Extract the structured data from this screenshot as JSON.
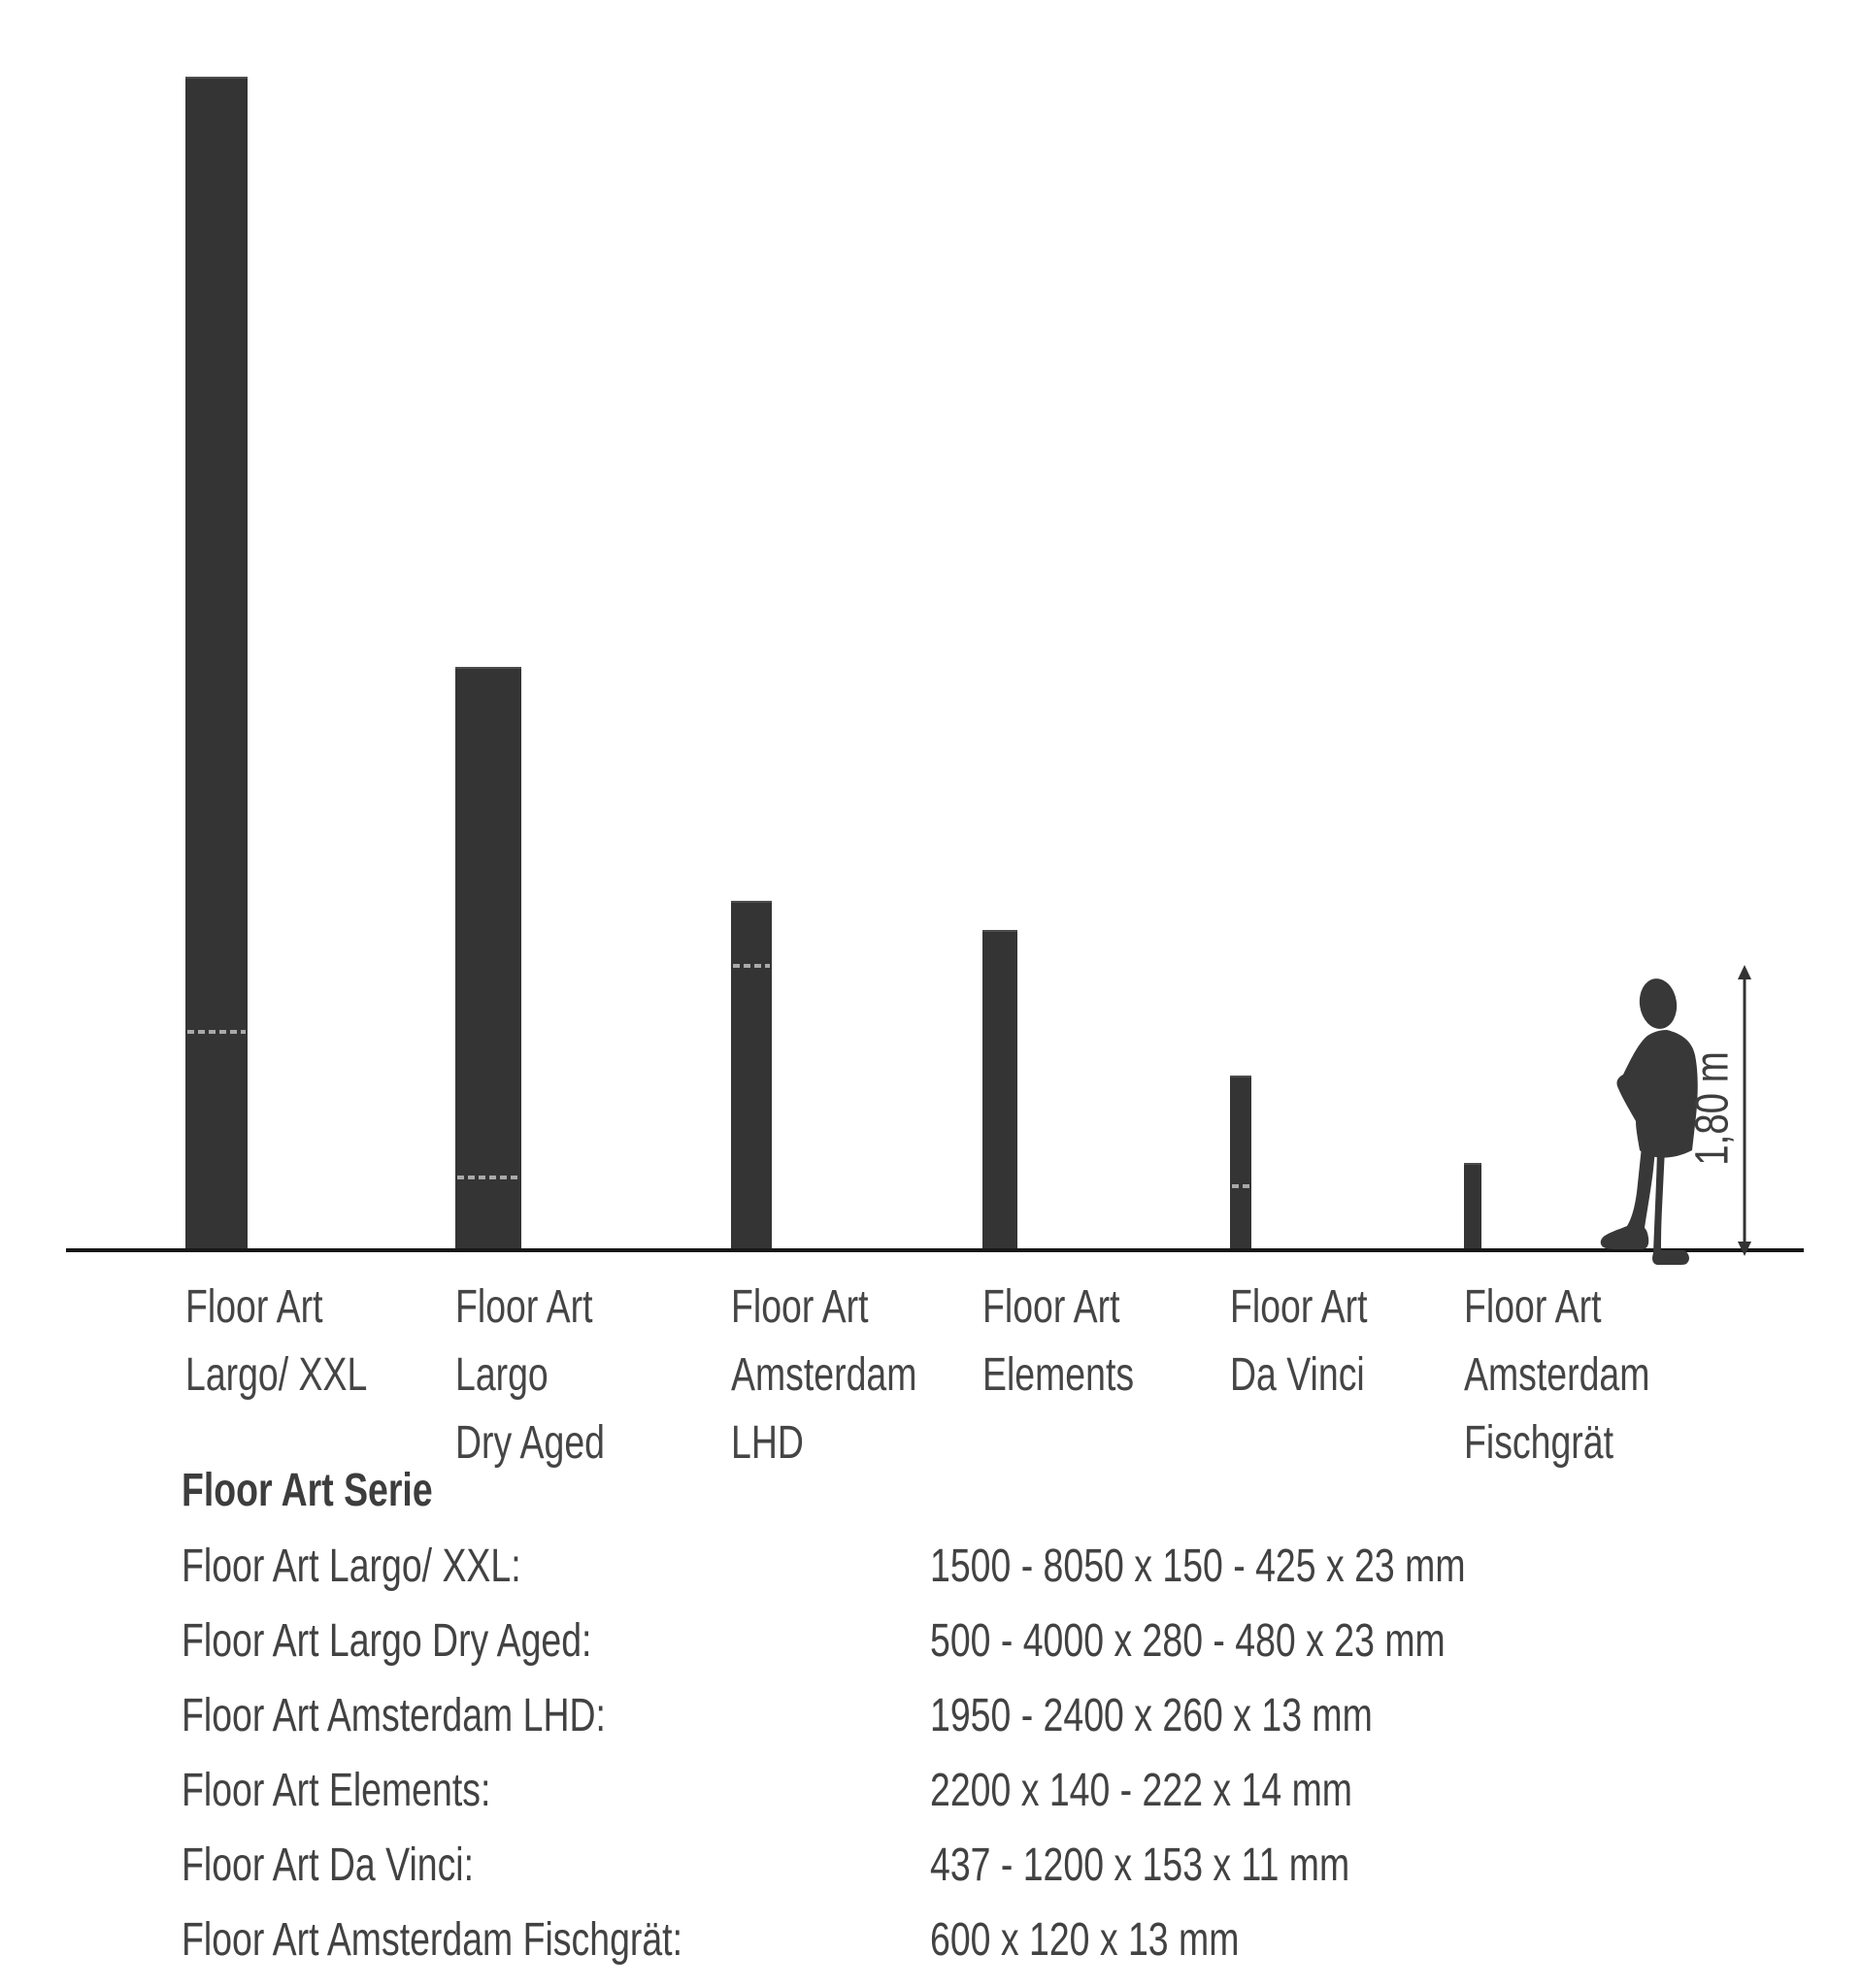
{
  "chart_data": {
    "type": "bar",
    "title": "",
    "unit": "mm",
    "ylim": [
      0,
      8050
    ],
    "grid": false,
    "legend": "none",
    "description": "Plank length comparison of Floor Art series; bar height = maximum plank length, dashed line = minimum plank length, human figure for scale",
    "scale_reference": {
      "label": "1,80 m",
      "height_mm": 1800
    },
    "bars": [
      {
        "label": "Floor Art Largo/ XXL",
        "label_lines": [
          "Floor Art",
          "Largo/ XXL"
        ],
        "min_length_mm": 1500,
        "max_length_mm": 8050,
        "width_mm_range": "150 - 425",
        "thickness_mm": 23
      },
      {
        "label": "Floor Art Largo Dry Aged",
        "label_lines": [
          "Floor Art",
          "Largo",
          "Dry Aged"
        ],
        "min_length_mm": 500,
        "max_length_mm": 4000,
        "width_mm_range": "280 - 480",
        "thickness_mm": 23
      },
      {
        "label": "Floor Art Amsterdam LHD",
        "label_lines": [
          "Floor Art",
          "Amsterdam",
          "LHD"
        ],
        "min_length_mm": 1950,
        "max_length_mm": 2400,
        "width_mm_range": "260",
        "thickness_mm": 13
      },
      {
        "label": "Floor Art Elements",
        "label_lines": [
          "Floor Art",
          "Elements"
        ],
        "min_length_mm": null,
        "max_length_mm": 2200,
        "width_mm_range": "140 - 222",
        "thickness_mm": 14
      },
      {
        "label": "Floor Art Da Vinci",
        "label_lines": [
          "Floor Art",
          "Da Vinci"
        ],
        "min_length_mm": 437,
        "max_length_mm": 1200,
        "width_mm_range": "153",
        "thickness_mm": 11
      },
      {
        "label": "Floor Art Amsterdam Fischgrät",
        "label_lines": [
          "Floor Art",
          "Amsterdam",
          "Fischgrät"
        ],
        "min_length_mm": null,
        "max_length_mm": 600,
        "width_mm_range": "120",
        "thickness_mm": 13
      }
    ]
  },
  "person": {
    "label": "1,80 m"
  },
  "table": {
    "heading": "Floor Art Serie",
    "rows": [
      {
        "label": "Floor Art Largo/ XXL:",
        "value": "1500 - 8050 x 150 - 425 x 23 mm"
      },
      {
        "label": "Floor Art Largo Dry Aged:",
        "value": "500 - 4000 x 280 - 480 x 23 mm"
      },
      {
        "label": "Floor Art Amsterdam LHD:",
        "value": "1950 - 2400 x 260 x 13 mm"
      },
      {
        "label": "Floor Art Elements:",
        "value": "2200 x 140 - 222 x 14 mm"
      },
      {
        "label": "Floor Art Da Vinci:",
        "value": "437 - 1200 x 153 x 11 mm"
      },
      {
        "label": "Floor Art Amsterdam Fischgrät:",
        "value": "600 x 120 x 13 mm"
      }
    ]
  }
}
